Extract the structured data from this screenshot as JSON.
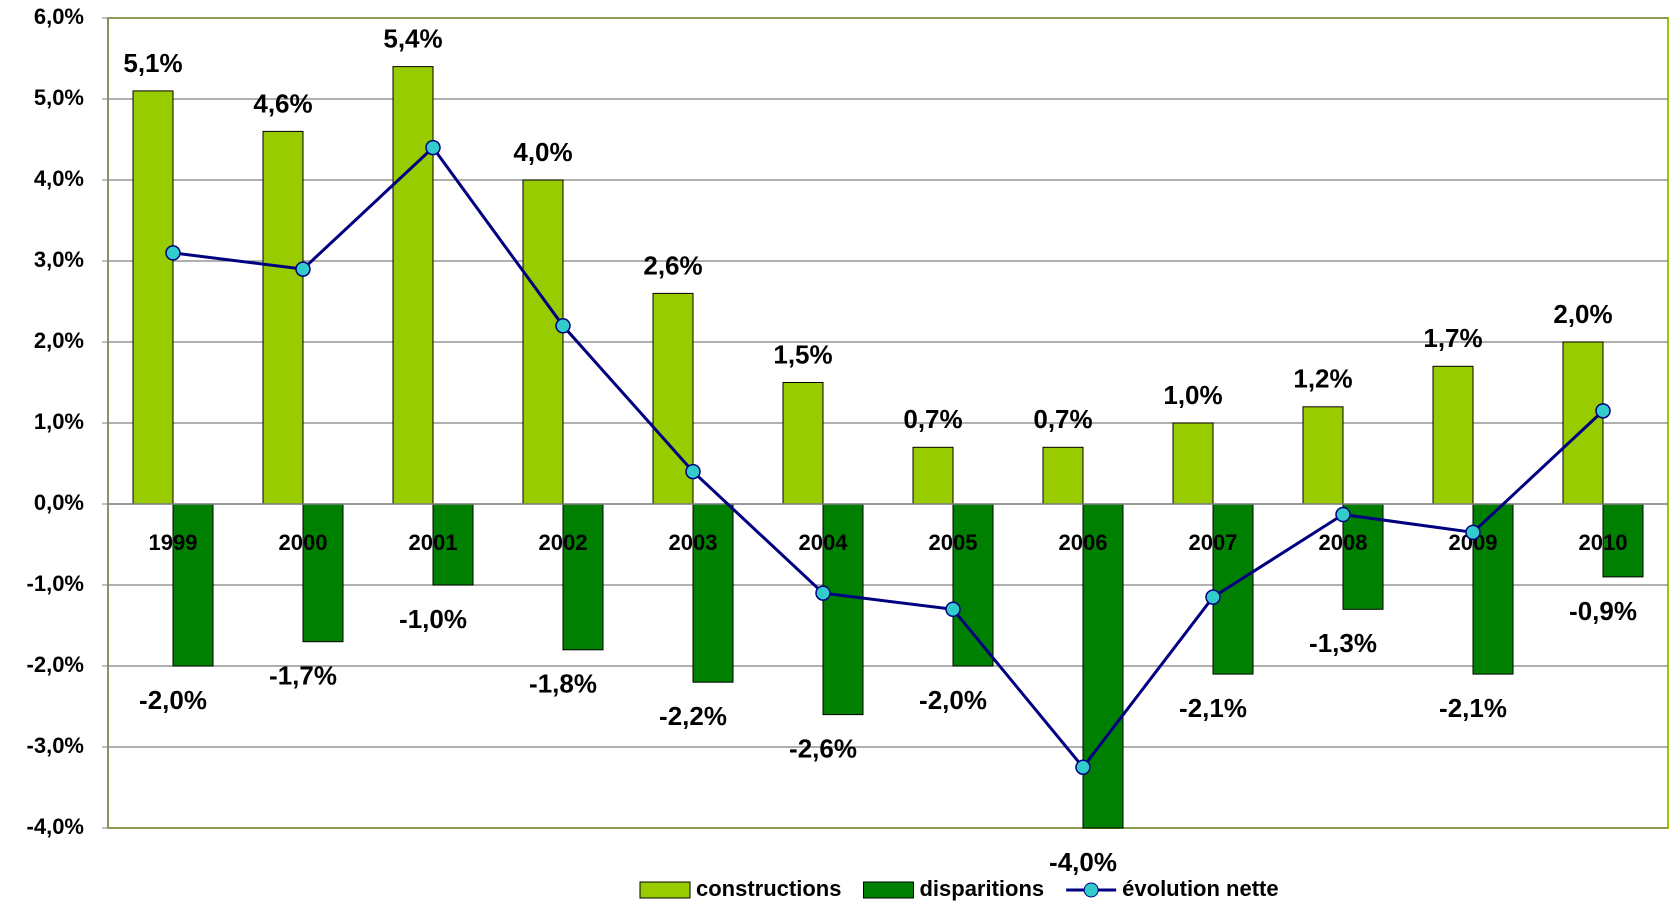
{
  "chart_data": {
    "type": "bar",
    "categories": [
      "1999",
      "2000",
      "2001",
      "2002",
      "2003",
      "2004",
      "2005",
      "2006",
      "2007",
      "2008",
      "2009",
      "2010"
    ],
    "series": [
      {
        "name": "constructions",
        "type": "bar",
        "color": "#99cc00",
        "values": [
          5.1,
          4.6,
          5.4,
          4.0,
          2.6,
          1.5,
          0.7,
          0.7,
          1.0,
          1.2,
          1.7,
          2.0
        ],
        "value_labels": [
          "5,1%",
          "4,6%",
          "5,4%",
          "4,0%",
          "2,6%",
          "1,5%",
          "0,7%",
          "0,7%",
          "1,0%",
          "1,2%",
          "1,7%",
          "2,0%"
        ]
      },
      {
        "name": "disparitions",
        "type": "bar",
        "color": "#008000",
        "values": [
          -2.0,
          -1.7,
          -1.0,
          -1.8,
          -2.2,
          -2.6,
          -2.0,
          -4.0,
          -2.1,
          -1.3,
          -2.1,
          -0.9
        ],
        "value_labels": [
          "-2,0%",
          "-1,7%",
          "-1,0%",
          "-1,8%",
          "-2,2%",
          "-2,6%",
          "-2,0%",
          "-4,0%",
          "-2,1%",
          "-1,3%",
          "-2,1%",
          "-0,9%"
        ]
      },
      {
        "name": "évolution nette",
        "type": "line",
        "color": "#000080",
        "marker_color": "#33cccc",
        "values": [
          3.1,
          2.9,
          4.4,
          2.2,
          0.4,
          -1.1,
          -1.3,
          -3.25,
          -1.15,
          -0.13,
          -0.35,
          1.15
        ]
      }
    ],
    "ylim": [
      -4,
      6
    ],
    "yticks": [
      {
        "value": -4,
        "label": "-4,0%"
      },
      {
        "value": -3,
        "label": "-3,0%"
      },
      {
        "value": -2,
        "label": "-2,0%"
      },
      {
        "value": -1,
        "label": "-1,0%"
      },
      {
        "value": 0,
        "label": "0,0%"
      },
      {
        "value": 1,
        "label": "1,0%"
      },
      {
        "value": 2,
        "label": "2,0%"
      },
      {
        "value": 3,
        "label": "3,0%"
      },
      {
        "value": 4,
        "label": "4,0%"
      },
      {
        "value": 5,
        "label": "5,0%"
      },
      {
        "value": 6,
        "label": "6,0%"
      }
    ],
    "grid": true,
    "legend": "bottom"
  }
}
